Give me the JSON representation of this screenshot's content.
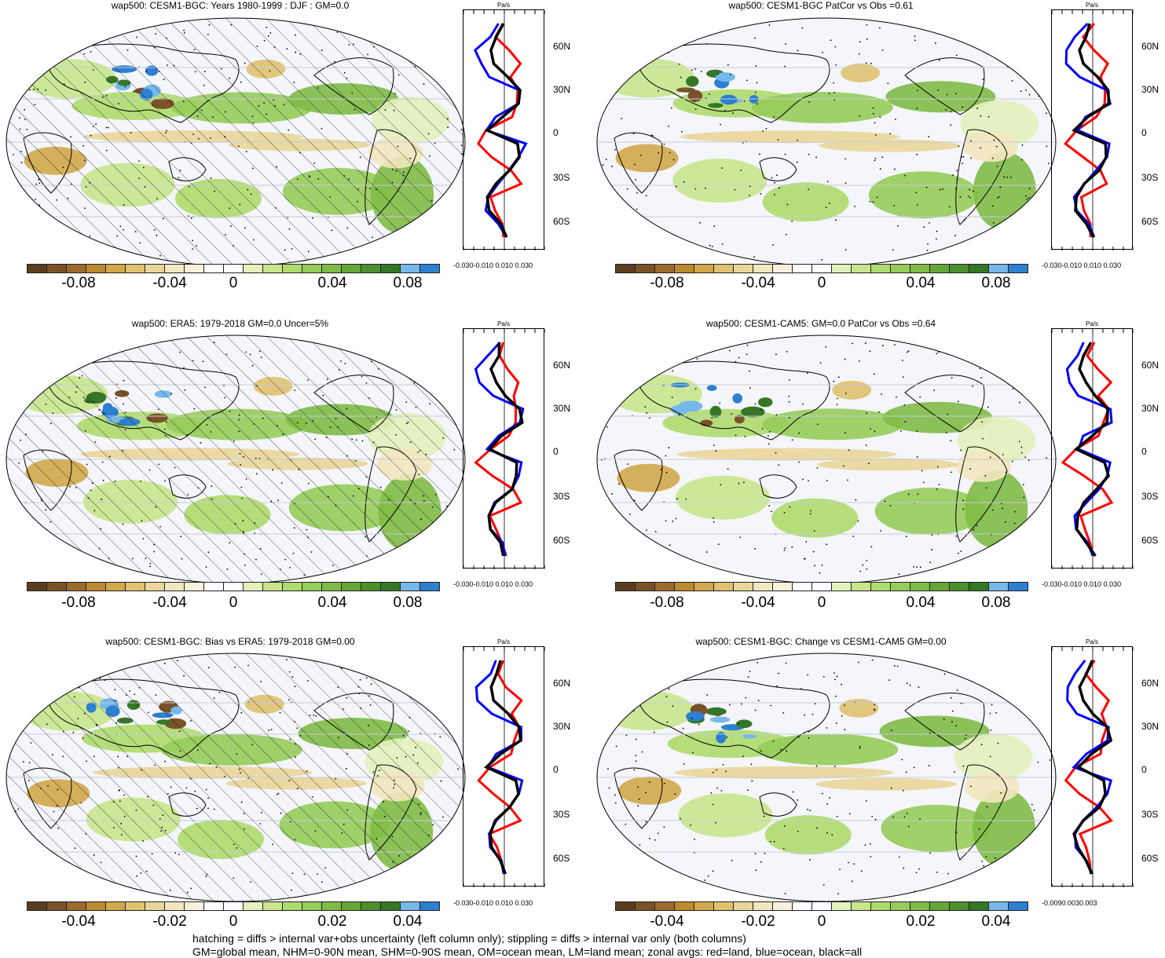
{
  "panels": [
    {
      "title": "wap500: CESM1-BGC: Years 1980-1999 : DJF : GM=0.0",
      "colorbar": [
        "-0.08",
        "-0.04",
        "0",
        "0.04",
        "0.08"
      ],
      "zonal_xticks": "-0.030-0.010 0.010 0.030",
      "hatching": true
    },
    {
      "title": "wap500: CESM1-BGC PatCor vs Obs =0.61",
      "colorbar": [
        "-0.08",
        "-0.04",
        "0",
        "0.04",
        "0.08"
      ],
      "zonal_xticks": "-0.030-0.010 0.010 0.030",
      "hatching": false
    },
    {
      "title": "wap500: ERA5: 1979-2018 GM=0.0 Uncer=5%",
      "colorbar": [
        "-0.08",
        "-0.04",
        "0",
        "0.04",
        "0.08"
      ],
      "zonal_xticks": "-0.030-0.010 0.010 0.030",
      "hatching": true
    },
    {
      "title": "wap500: CESM1-CAM5: GM=0.0 PatCor vs Obs =0.64",
      "colorbar": [
        "-0.08",
        "-0.04",
        "0",
        "0.04",
        "0.08"
      ],
      "zonal_xticks": "-0.030-0.010 0.010 0.030",
      "hatching": false
    },
    {
      "title": "wap500: CESM1-BGC: Bias vs ERA5: 1979-2018 GM=0.00",
      "colorbar": [
        "-0.04",
        "-0.02",
        "0",
        "0.02",
        "0.04"
      ],
      "zonal_xticks": "-0.030-0.010 0.010 0.030",
      "hatching": true
    },
    {
      "title": "wap500: CESM1-BGC: Change vs CESM1-CAM5 GM=0.00",
      "colorbar": [
        "-0.04",
        "-0.02",
        "0",
        "0.02",
        "0.04"
      ],
      "zonal_xticks": "-0.0090.0030.003",
      "hatching": false
    }
  ],
  "zonal_unit": "Pa/s",
  "lat_labels": [
    "60N",
    "30N",
    "0",
    "30S",
    "60S"
  ],
  "footer": {
    "line1": "hatching = diffs > internal var+obs uncertainty (left column only); stippling = diffs > internal var only (both columns)",
    "line2": "GM=global mean, NHM=0-90N mean, SHM=0-90S mean, OM=ocean mean, LM=land mean; zonal avgs: red=land, blue=ocean, black=all"
  },
  "colorbar_colors": [
    "#5a3d1e",
    "#7a5228",
    "#9c6a2e",
    "#bc8a2f",
    "#d2a94a",
    "#dfc270",
    "#ead69a",
    "#f2e7bf",
    "#f8f1dc",
    "#ffffff",
    "#ffffff",
    "#e3f1bd",
    "#c9e58d",
    "#aedb6d",
    "#96cc5a",
    "#7fbb46",
    "#65a637",
    "#4c8f2e",
    "#357726",
    "#76b8ea",
    "#2d7fcf"
  ],
  "map_colors": {
    "ocean_base": "#f4f6fb",
    "land_line": "#000000",
    "grid": "#c9ccd6"
  },
  "series_colors": {
    "land": "#ff0000",
    "ocean": "#0000ff",
    "all": "#000000"
  },
  "chart_data": {
    "type": "line",
    "description_units": "Pa/s",
    "lat": [
      80,
      70,
      60,
      50,
      40,
      30,
      20,
      10,
      0,
      -10,
      -20,
      -30,
      -40,
      -50,
      -60,
      -70,
      -80
    ],
    "series": [
      {
        "name": "land",
        "values": [
          0.0,
          -0.005,
          0.002,
          0.012,
          0.005,
          0.01,
          0.008,
          0.004,
          -0.012,
          -0.02,
          -0.008,
          0.006,
          0.012,
          -0.01,
          -0.006,
          -0.003,
          0.0
        ]
      },
      {
        "name": "ocean",
        "values": [
          -0.005,
          -0.012,
          -0.02,
          -0.018,
          -0.01,
          0.012,
          0.012,
          -0.005,
          -0.012,
          0.014,
          0.012,
          0.004,
          -0.006,
          -0.012,
          -0.012,
          -0.003,
          0.0
        ]
      },
      {
        "name": "all",
        "values": [
          -0.002,
          -0.005,
          -0.01,
          -0.006,
          0.002,
          0.01,
          0.012,
          -0.002,
          -0.012,
          0.01,
          0.01,
          0.004,
          -0.006,
          -0.012,
          -0.011,
          -0.003,
          0.0
        ]
      }
    ]
  }
}
